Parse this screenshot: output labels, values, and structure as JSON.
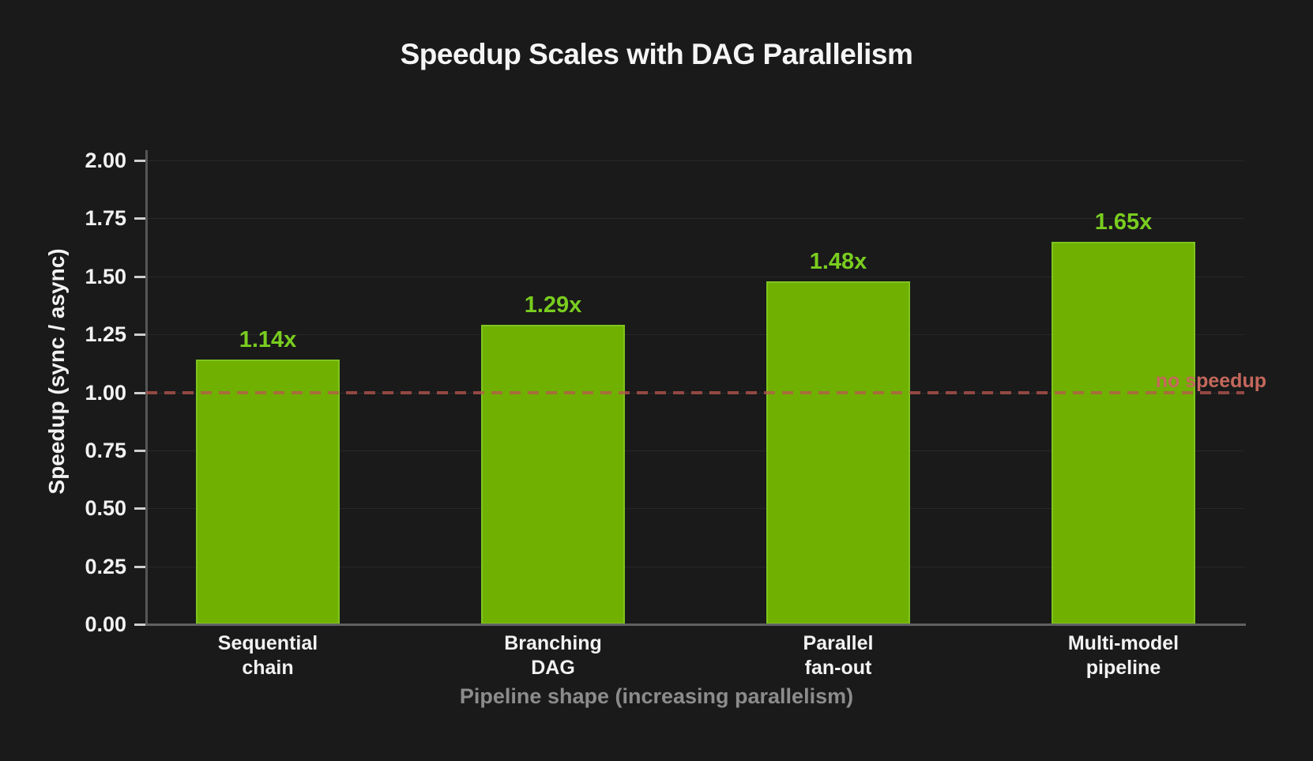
{
  "chart_data": {
    "type": "bar",
    "title": "Speedup Scales with DAG Parallelism",
    "xlabel": "Pipeline shape (increasing parallelism)",
    "ylabel": "Speedup (sync / async)",
    "ylim": [
      0.0,
      2.0
    ],
    "ytick_step": 0.25,
    "yticks": [
      "0.00",
      "0.25",
      "0.50",
      "0.75",
      "1.00",
      "1.25",
      "1.50",
      "1.75",
      "2.00"
    ],
    "grid": true,
    "categories": [
      "Sequential chain",
      "Branching DAG",
      "Parallel fan-out",
      "Multi-model pipeline"
    ],
    "values": [
      1.14,
      1.29,
      1.48,
      1.65
    ],
    "bars": [
      {
        "label_line1": "Sequential",
        "label_line2": "chain",
        "value": 1.14,
        "display": "1.14x"
      },
      {
        "label_line1": "Branching",
        "label_line2": "DAG",
        "value": 1.29,
        "display": "1.29x"
      },
      {
        "label_line1": "Parallel",
        "label_line2": "fan-out",
        "value": 1.48,
        "display": "1.48x"
      },
      {
        "label_line1": "Multi-model",
        "label_line2": "pipeline",
        "value": 1.65,
        "display": "1.65x"
      }
    ],
    "reference_line": {
      "value": 1.0,
      "label": "no speedup",
      "style": "dashed",
      "color": "#ba564f"
    },
    "colors": {
      "background": "#1a1a1a",
      "bar_fill": "#6fb000",
      "bar_edge": "#7fc41e",
      "value_label": "#79cd1f",
      "reference_label": "#c5685c",
      "axis_spine": "#5c5c5c",
      "gridline": "#282828",
      "tick_label": "#f2f2f2",
      "xlabel_text": "#8c8c8c"
    }
  }
}
